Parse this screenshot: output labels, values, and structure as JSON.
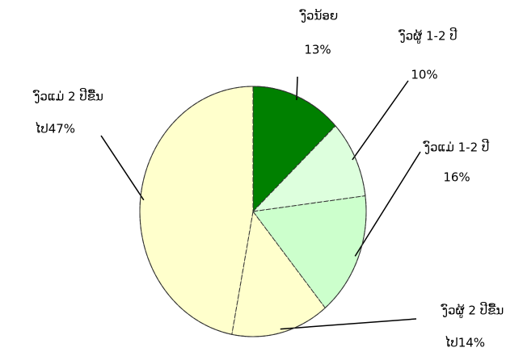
{
  "chart_data": {
    "type": "pie",
    "categories": [
      "ງົວນ້ອຍ",
      "ງົວຜູ້ 1-2 ປີ",
      "ງົວແມ່ 1-2 ປີ",
      "ງົວຜູ້ 2 ປີຂື້ນ",
      "ງົວແມ່ 2 ປີຂື້ນ"
    ],
    "values": [
      13,
      10,
      16,
      14,
      47
    ],
    "value_labels": [
      "13%",
      "10%",
      "16%",
      "ໄປ14%",
      "ໄປ47%"
    ],
    "colors": [
      "#008000",
      "#ddffdd",
      "#ccffcc",
      "#ffffcc",
      "#ffffcc"
    ]
  }
}
